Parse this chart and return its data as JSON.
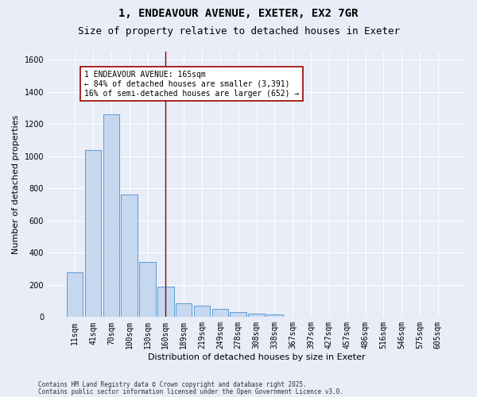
{
  "title_line1": "1, ENDEAVOUR AVENUE, EXETER, EX2 7GR",
  "title_line2": "Size of property relative to detached houses in Exeter",
  "xlabel": "Distribution of detached houses by size in Exeter",
  "ylabel": "Number of detached properties",
  "categories": [
    "11sqm",
    "41sqm",
    "70sqm",
    "100sqm",
    "130sqm",
    "160sqm",
    "189sqm",
    "219sqm",
    "249sqm",
    "278sqm",
    "308sqm",
    "338sqm",
    "367sqm",
    "397sqm",
    "427sqm",
    "457sqm",
    "486sqm",
    "516sqm",
    "546sqm",
    "575sqm",
    "605sqm"
  ],
  "bar_values": [
    280,
    1040,
    1260,
    760,
    340,
    190,
    85,
    70,
    50,
    30,
    20,
    15,
    3,
    0,
    0,
    0,
    0,
    0,
    0,
    0,
    0
  ],
  "bar_color": "#c5d8f0",
  "bar_edge_color": "#5b9bd5",
  "background_color": "#e8edf8",
  "grid_color": "#ffffff",
  "vline_x_index": 5,
  "vline_color": "#990000",
  "annotation_text": "1 ENDEAVOUR AVENUE: 165sqm\n← 84% of detached houses are smaller (3,391)\n16% of semi-detached houses are larger (652) →",
  "annotation_box_color": "#ffffff",
  "annotation_box_edge": "#990000",
  "ylim": [
    0,
    1650
  ],
  "yticks": [
    0,
    200,
    400,
    600,
    800,
    1000,
    1200,
    1400,
    1600
  ],
  "footer_line1": "Contains HM Land Registry data © Crown copyright and database right 2025.",
  "footer_line2": "Contains public sector information licensed under the Open Government Licence v3.0.",
  "title_fontsize": 10,
  "subtitle_fontsize": 9,
  "axis_label_fontsize": 8,
  "tick_fontsize": 7,
  "annotation_fontsize": 7,
  "footer_fontsize": 5.5
}
